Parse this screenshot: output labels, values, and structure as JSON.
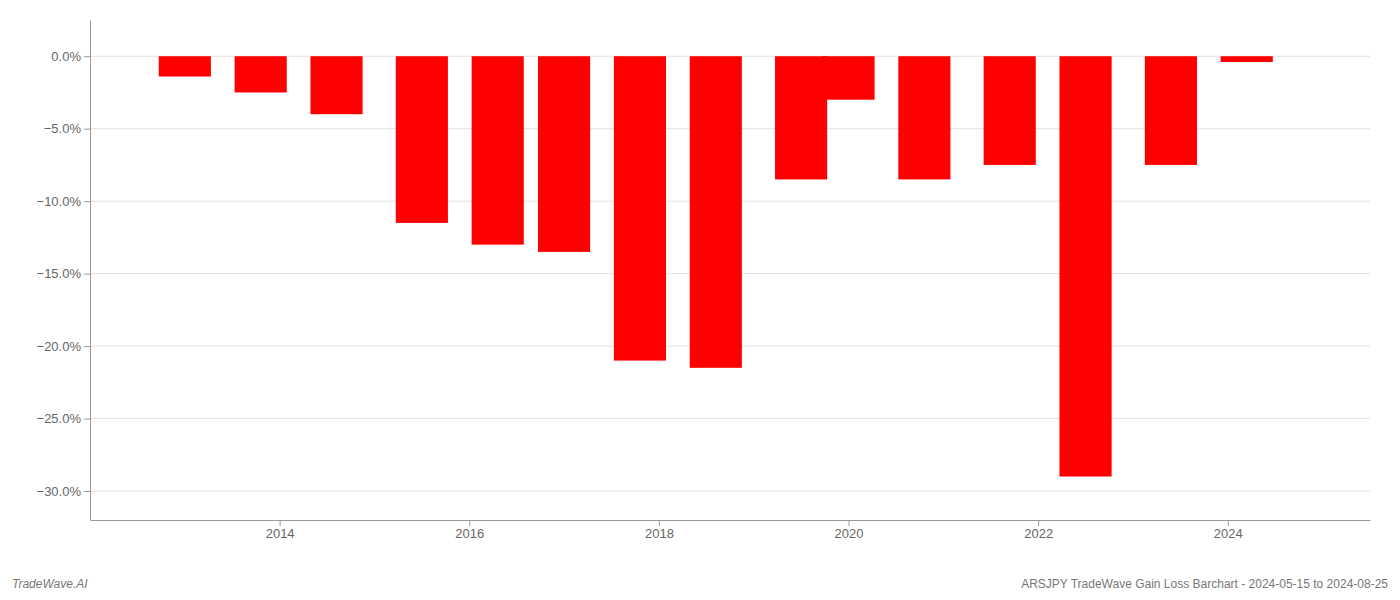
{
  "chart_data": {
    "type": "bar",
    "x": [
      2013,
      2013.8,
      2014.6,
      2015.5,
      2016.3,
      2017.0,
      2017.8,
      2018.6,
      2019.5,
      2020.0,
      2020.8,
      2021.7,
      2022.5,
      2023.4,
      2024.2
    ],
    "values": [
      -1.4,
      -2.5,
      -4.0,
      -11.5,
      -13.0,
      -13.5,
      -21.0,
      -21.5,
      -8.5,
      -3.0,
      -8.5,
      -7.5,
      -29.0,
      -7.5,
      -0.4
    ],
    "color": "#ff0000",
    "xlim": [
      2012.0,
      2025.5
    ],
    "xticks": [
      2014,
      2016,
      2018,
      2020,
      2022,
      2024
    ],
    "ylim": [
      -32,
      2.5
    ],
    "yticks": [
      {
        "value": 0.0,
        "label": "0.0%"
      },
      {
        "value": -5.0,
        "label": "−5.0%"
      },
      {
        "value": -10.0,
        "label": "−10.0%"
      },
      {
        "value": -15.0,
        "label": "−15.0%"
      },
      {
        "value": -20.0,
        "label": "−20.0%"
      },
      {
        "value": -25.0,
        "label": "−25.0%"
      },
      {
        "value": -30.0,
        "label": "−30.0%"
      }
    ],
    "grid": true,
    "annotations": [
      "TradeWave.AI",
      "ARSJPY TradeWave Gain Loss Barchart - 2024-05-15 to 2024-08-25"
    ]
  }
}
